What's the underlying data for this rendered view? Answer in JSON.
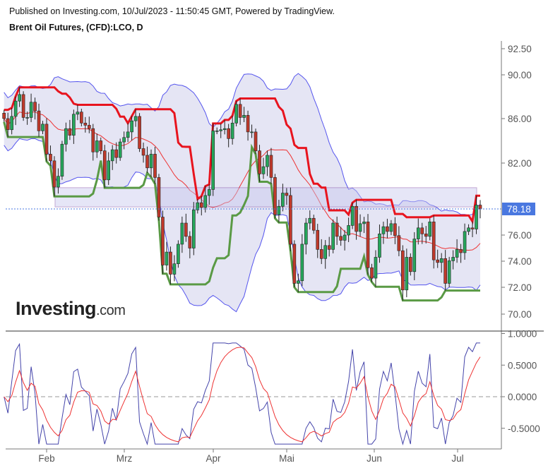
{
  "header": {
    "published": "Published on Investing.com, 10/Jul/2023 - 11:50:45 GMT, Powered by TradingView.",
    "title": "Brent Oil Futures, (CFD):LCO, D"
  },
  "logo": {
    "main": "Investing",
    "suffix": ".com"
  },
  "colors": {
    "up": "#26a65b",
    "down": "#c0392b",
    "band_fill": "#dcdcf0",
    "band_line": "#5555ee",
    "basis": "#e33",
    "resistance": "#e8141e",
    "support": "#5a9a45",
    "osc": "#4444aa",
    "signal": "#e33",
    "last_price_bg": "#4a78e0"
  },
  "chart_data": [
    {
      "type": "candlestick",
      "title": "Brent Oil Futures, (CFD):LCO, D",
      "x_labels": [
        "Feb",
        "Mrz",
        "Apr",
        "Mai",
        "Jun",
        "Jul"
      ],
      "y_ticks": [
        "92.50",
        "90.00",
        "86.00",
        "82.00",
        "76.00",
        "74.00",
        "72.00",
        "70.00"
      ],
      "last_price": "78.18",
      "zone": [
        78.35,
        79.95
      ],
      "closes": [
        86,
        85,
        86.2,
        87.6,
        88.2,
        86.1,
        86.1,
        87.5,
        86.7,
        84.9,
        85.5,
        82.8,
        82.2,
        80,
        80.9,
        83.7,
        85.1,
        84.5,
        86.4,
        86.6,
        85.6,
        85.4,
        85.1,
        83,
        84,
        83.1,
        80.6,
        82.2,
        83.2,
        82.5,
        83.9,
        84.3,
        84.8,
        85.8,
        86.2,
        83.3,
        82.7,
        81.6,
        82.8,
        80.8,
        77.5,
        73.7,
        74.7,
        73,
        73.8,
        75.3,
        77,
        75.9,
        75,
        78.1,
        78.7,
        78.3,
        79.3,
        79.8,
        84.9,
        84.9,
        85,
        85.1,
        84.2,
        85.6,
        87.3,
        86.1,
        86.3,
        84.8,
        84.8,
        83.1,
        81.1,
        81.7,
        82.7,
        80.8,
        77.7,
        78.4,
        79.5,
        79.3,
        75.3,
        72.3,
        72.5,
        75.3,
        77,
        77.4,
        76.4,
        74.9,
        74.2,
        75.2,
        74.9,
        77,
        75.9,
        75.6,
        76,
        76.8,
        78.4,
        76.3,
        76.95,
        77.1,
        73.5,
        72.7,
        74.3,
        76.1,
        76.7,
        76.3,
        76.95,
        75.96,
        74.8,
        71.8,
        74.3,
        73.2,
        75.7,
        76.6,
        76.1,
        75.9,
        77.1,
        74.1,
        73.9,
        74.2,
        72.3,
        74.03,
        74.3,
        74.9,
        74.65,
        76.3,
        76.6,
        76.5,
        78.5,
        78.18
      ]
    },
    {
      "type": "line",
      "y_ticks": [
        "1.0000",
        "0.5000",
        "0.0000",
        "-0.5000"
      ],
      "zero_line": 0
    }
  ]
}
